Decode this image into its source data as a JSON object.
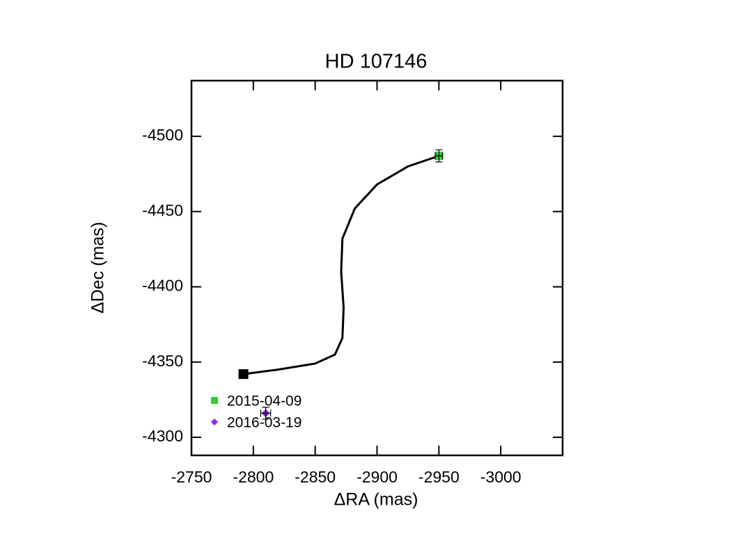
{
  "chart_data": {
    "type": "scatter",
    "title": "HD 107146",
    "xlabel": "ΔRA (mas)",
    "ylabel": "ΔDec (mas)",
    "xlim": [
      -2750,
      -3050
    ],
    "ylim": [
      -4288,
      -4537
    ],
    "xticks": [
      -2750,
      -2800,
      -2850,
      -2900,
      -2950,
      -3000
    ],
    "yticks": [
      -4300,
      -4350,
      -4400,
      -4450,
      -4500
    ],
    "legend": "lower left",
    "series": [
      {
        "type": "line",
        "color": "#000000",
        "x": [
          -2792,
          -2820,
          -2850,
          -2866,
          -2872,
          -2873,
          -2871,
          -2872,
          -2882,
          -2900,
          -2925,
          -2950
        ],
        "values": [
          -4342,
          -4345,
          -4349,
          -4355,
          -4366,
          -4386,
          -4410,
          -4432,
          -4452,
          -4468,
          -4480,
          -4487
        ]
      },
      {
        "name": "2015-04-09",
        "color": "#33cc33",
        "marker": "square",
        "x": [
          -2950
        ],
        "values": [
          -4487
        ],
        "xerr": [
          3
        ],
        "yerr": [
          4
        ]
      },
      {
        "name": "2016-03-19",
        "color": "#8a2be2",
        "marker": "diamond",
        "x": [
          -2810
        ],
        "values": [
          -4316
        ],
        "xerr": [
          4
        ],
        "yerr": [
          4
        ]
      },
      {
        "color": "#000000",
        "marker": "square",
        "x": [
          -2792
        ],
        "values": [
          -4342
        ]
      }
    ]
  }
}
